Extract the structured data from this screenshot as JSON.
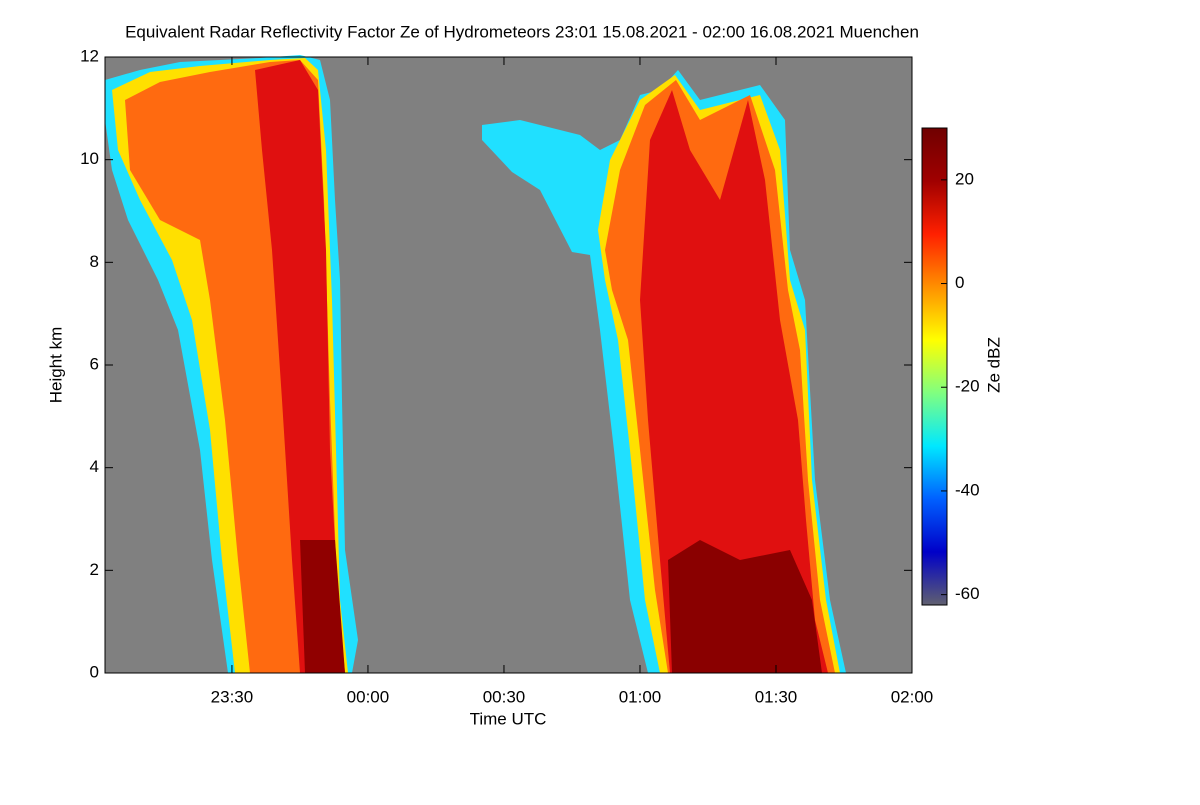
{
  "chart_data": {
    "type": "heatmap",
    "title": "Equivalent Radar Reflectivity Factor Ze of Hydrometeors   23:01 15.08.2021 - 02:00 16.08.2021 Muenchen",
    "x_label": "Time UTC",
    "y_label": "Height km",
    "xlim": [
      1382,
      1560
    ],
    "xticks": [
      {
        "value": 1410,
        "label": "23:30"
      },
      {
        "value": 1440,
        "label": "00:00"
      },
      {
        "value": 1470,
        "label": "00:30"
      },
      {
        "value": 1500,
        "label": "01:00"
      },
      {
        "value": 1530,
        "label": "01:30"
      },
      {
        "value": 1560,
        "label": "02:00"
      }
    ],
    "ylim": [
      0,
      12
    ],
    "yticks": [
      0,
      2,
      4,
      6,
      8,
      10,
      12
    ],
    "colorbar_label": "Ze dBZ",
    "clim": [
      -62,
      30
    ],
    "cticks": [
      -60,
      -40,
      -20,
      0,
      20
    ],
    "colormap": [
      "#606070",
      "#0000c8",
      "#0060ff",
      "#00e8ff",
      "#80ff80",
      "#ffff00",
      "#ff9000",
      "#ff2000",
      "#a00000",
      "#700000"
    ],
    "background": "#808080"
  }
}
